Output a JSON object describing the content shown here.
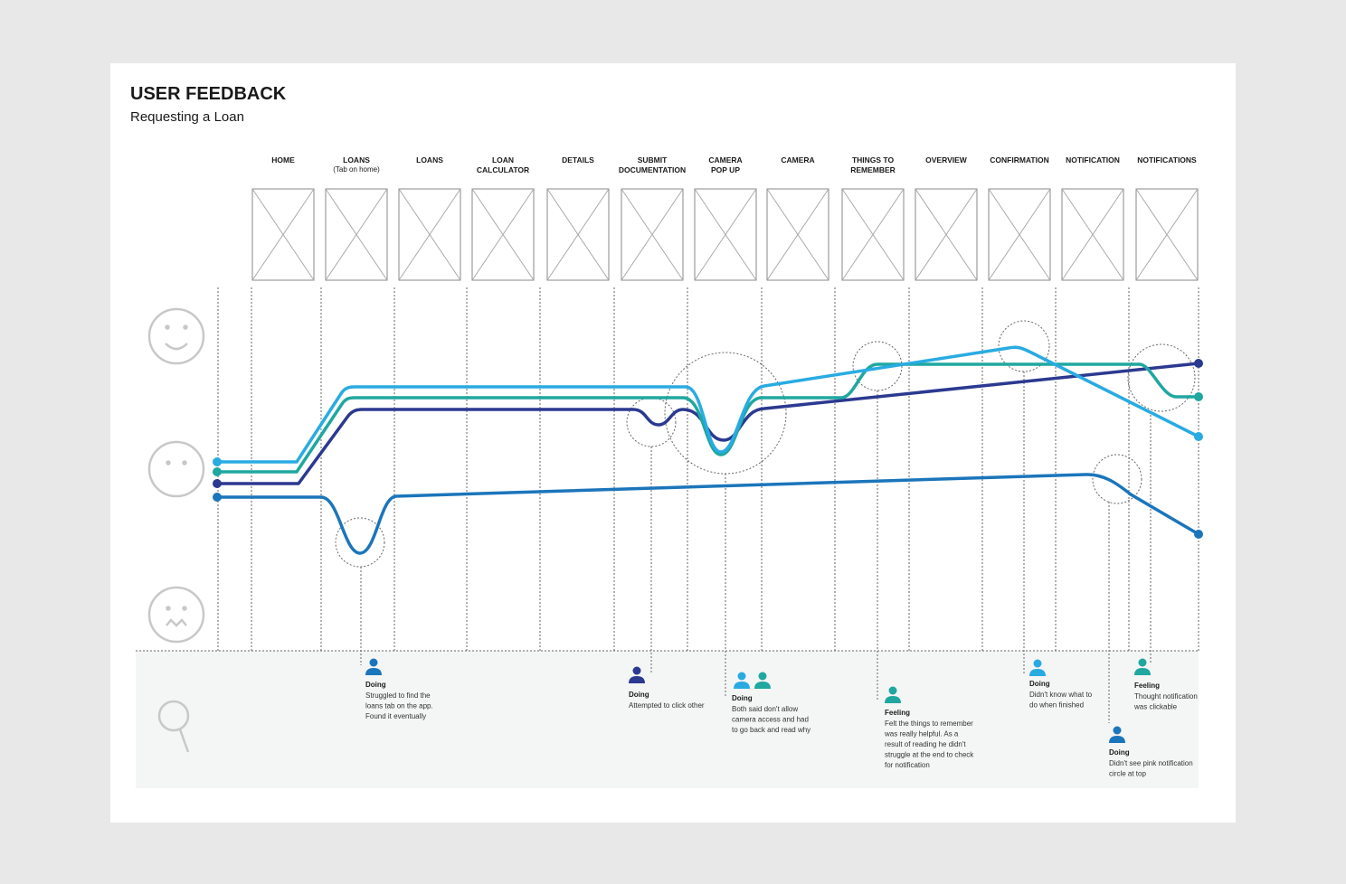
{
  "header": {
    "title": "USER FEEDBACK",
    "subtitle": "Requesting a Loan"
  },
  "steps": [
    {
      "lines": [
        "HOME"
      ]
    },
    {
      "lines": [
        "LOANS"
      ],
      "note": "(Tab on home)"
    },
    {
      "lines": [
        "LOANS"
      ]
    },
    {
      "lines": [
        "LOAN",
        "CALCULATOR"
      ]
    },
    {
      "lines": [
        "DETAILS"
      ]
    },
    {
      "lines": [
        "SUBMIT",
        "DOCUMENTATION"
      ]
    },
    {
      "lines": [
        "CAMERA",
        "POP UP"
      ]
    },
    {
      "lines": [
        "CAMERA"
      ]
    },
    {
      "lines": [
        "THINGS TO",
        "REMEMBER"
      ]
    },
    {
      "lines": [
        "OVERVIEW"
      ]
    },
    {
      "lines": [
        "CONFIRMATION"
      ]
    },
    {
      "lines": [
        "NOTIFICATION"
      ]
    },
    {
      "lines": [
        "NOTIFICATIONS"
      ]
    }
  ],
  "notes": [
    {
      "kind": "Doing",
      "lines": [
        "Struggled to find the",
        "loans tab on the app.",
        "Found it eventually"
      ]
    },
    {
      "kind": "Doing",
      "lines": [
        "Attempted to click other"
      ]
    },
    {
      "kind": "Doing",
      "lines": [
        "Both said don't allow",
        "camera access and had",
        "to go back and read why"
      ]
    },
    {
      "kind": "Feeling",
      "lines": [
        "Felt the things to remember",
        "was really helpful. As a",
        "result of reading he didn't",
        "struggle at the end to check",
        "for notification"
      ]
    },
    {
      "kind": "Doing",
      "lines": [
        "Didn't know what to",
        "do when finished"
      ]
    },
    {
      "kind": "Doing",
      "lines": [
        "Didn't see pink notification",
        "circle at top"
      ]
    },
    {
      "kind": "Feeling",
      "lines": [
        "Thought notification",
        "was clickable"
      ]
    }
  ]
}
